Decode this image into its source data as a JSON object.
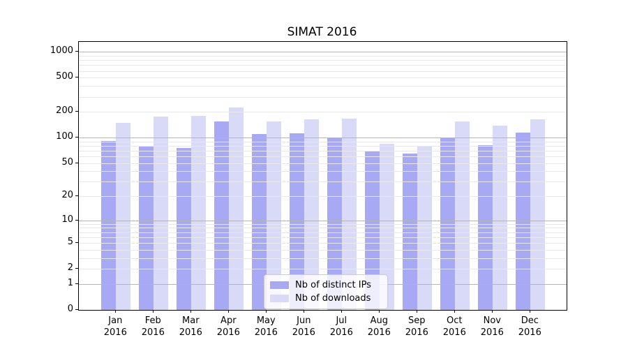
{
  "title": "SIMAT 2016",
  "colors": {
    "ips_bar": "#a8a9f5",
    "downloads_bar": "#d9daf8",
    "grid_major": "#b5b5b5",
    "grid_minor": "#e9e9e9",
    "axis_line": "#000000",
    "background": "#ffffff"
  },
  "legend": {
    "items": [
      {
        "label": "Nb of distinct IPs",
        "series": "ips"
      },
      {
        "label": "Nb of downloads",
        "series": "downloads"
      }
    ]
  },
  "y_axis": {
    "scale": "symlog (position proportional to ln(1+v))",
    "tick_labels": [
      "0",
      "1",
      "2",
      "5",
      "10",
      "20",
      "50",
      "100",
      "200",
      "500",
      "1000"
    ],
    "tick_values": [
      0,
      1,
      2,
      5,
      10,
      20,
      50,
      100,
      200,
      500,
      1000
    ],
    "major_gridlines": [
      1,
      10,
      100,
      1000
    ]
  },
  "chart_data": {
    "type": "bar",
    "title": "SIMAT 2016",
    "categories": [
      "Jan 2016",
      "Feb 2016",
      "Mar 2016",
      "Apr 2016",
      "May 2016",
      "Jun 2016",
      "Jul 2016",
      "Aug 2016",
      "Sep 2016",
      "Oct 2016",
      "Nov 2016",
      "Dec 2016"
    ],
    "series": [
      {
        "name": "Nb of distinct IPs",
        "color": "#a8a9f5",
        "values": [
          92,
          80,
          76,
          155,
          110,
          113,
          98,
          70,
          65,
          100,
          82,
          115
        ]
      },
      {
        "name": "Nb of downloads",
        "color": "#d9daf8",
        "values": [
          150,
          176,
          178,
          225,
          155,
          162,
          167,
          85,
          79,
          155,
          139,
          164
        ]
      }
    ],
    "xlabel": "",
    "ylabel": "",
    "yscale": "log1p",
    "yticks": [
      0,
      1,
      2,
      5,
      10,
      20,
      50,
      100,
      200,
      500,
      1000
    ],
    "ylim": [
      0,
      1300
    ],
    "grid": true,
    "grid_above_bars": true,
    "legend_position": "inside lower-center"
  }
}
